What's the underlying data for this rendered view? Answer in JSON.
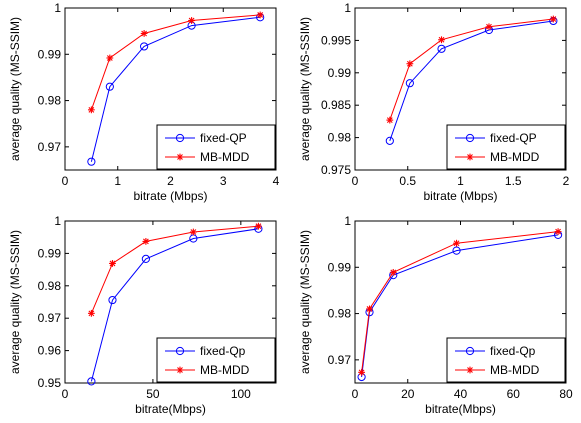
{
  "chart_data": [
    {
      "type": "line",
      "xlabel": "bitrate (Mbps)",
      "ylabel": "average quality (MS-SSIM)",
      "xlim": [
        0,
        4
      ],
      "ylim": [
        0.965,
        1
      ],
      "xticks": [
        "0",
        "1",
        "2",
        "3",
        "4"
      ],
      "yticks": [
        "0.97",
        "0.98",
        "0.99",
        "1"
      ],
      "legend_position": "bottom-right",
      "series": [
        {
          "name": "fixed-QP",
          "color": "#0000ff",
          "marker": "circle",
          "x": [
            0.5,
            0.85,
            1.5,
            2.4,
            3.7
          ],
          "y": [
            0.9668,
            0.983,
            0.9917,
            0.9962,
            0.998
          ]
        },
        {
          "name": "MB-MDD",
          "color": "#ff0000",
          "marker": "star",
          "x": [
            0.5,
            0.85,
            1.5,
            2.4,
            3.7
          ],
          "y": [
            0.978,
            0.9892,
            0.9945,
            0.9973,
            0.9985
          ]
        }
      ]
    },
    {
      "type": "line",
      "xlabel": "bitrate (Mbps)",
      "ylabel": "average quality (MS-SSIM)",
      "xlim": [
        0,
        2
      ],
      "ylim": [
        0.975,
        1
      ],
      "xticks": [
        "0",
        "0.5",
        "1",
        "1.5",
        "2"
      ],
      "yticks": [
        "0.975",
        "0.98",
        "0.985",
        "0.99",
        "0.995",
        "1"
      ],
      "legend_position": "bottom-right",
      "series": [
        {
          "name": "fixed-QP",
          "color": "#0000ff",
          "marker": "circle",
          "x": [
            0.33,
            0.52,
            0.82,
            1.27,
            1.88
          ],
          "y": [
            0.9795,
            0.9884,
            0.9937,
            0.9966,
            0.998
          ]
        },
        {
          "name": "MB-MDD",
          "color": "#ff0000",
          "marker": "star",
          "x": [
            0.33,
            0.52,
            0.82,
            1.27,
            1.88
          ],
          "y": [
            0.9827,
            0.9914,
            0.9951,
            0.9971,
            0.9983
          ]
        }
      ]
    },
    {
      "type": "line",
      "xlabel": "bitrate(Mbps)",
      "ylabel": "average quality (MS-SSIM)",
      "xlim": [
        0,
        120
      ],
      "ylim": [
        0.95,
        1
      ],
      "xticks": [
        "0",
        "50",
        "100"
      ],
      "yticks": [
        "0.95",
        "0.96",
        "0.97",
        "0.98",
        "0.99",
        "1"
      ],
      "legend_position": "bottom-right",
      "series": [
        {
          "name": "fixed-Qp",
          "color": "#0000ff",
          "marker": "circle",
          "x": [
            15,
            27,
            46,
            73,
            110
          ],
          "y": [
            0.9505,
            0.9756,
            0.9883,
            0.9946,
            0.9976
          ]
        },
        {
          "name": "MB-MDD",
          "color": "#ff0000",
          "marker": "star",
          "x": [
            15,
            27,
            46,
            73,
            110
          ],
          "y": [
            0.9715,
            0.9869,
            0.9937,
            0.9966,
            0.9984
          ]
        }
      ]
    },
    {
      "type": "line",
      "xlabel": "bitrate(Mbps)",
      "ylabel": "average quality (MS-SSIM)",
      "xlim": [
        0,
        80
      ],
      "ylim": [
        0.965,
        1
      ],
      "xticks": [
        "0",
        "20",
        "40",
        "60",
        "80"
      ],
      "yticks": [
        "0.97",
        "0.98",
        "0.99",
        "1"
      ],
      "legend_position": "bottom-right",
      "series": [
        {
          "name": "fixed-Qp",
          "color": "#0000ff",
          "marker": "circle",
          "x": [
            2.5,
            5.5,
            14.5,
            38.5,
            77
          ],
          "y": [
            0.9663,
            0.9803,
            0.9883,
            0.9936,
            0.997
          ]
        },
        {
          "name": "MB-MDD",
          "color": "#ff0000",
          "marker": "star",
          "x": [
            2.5,
            5.5,
            14.5,
            38.5,
            77
          ],
          "y": [
            0.9673,
            0.981,
            0.9889,
            0.9952,
            0.9977
          ]
        }
      ]
    }
  ]
}
